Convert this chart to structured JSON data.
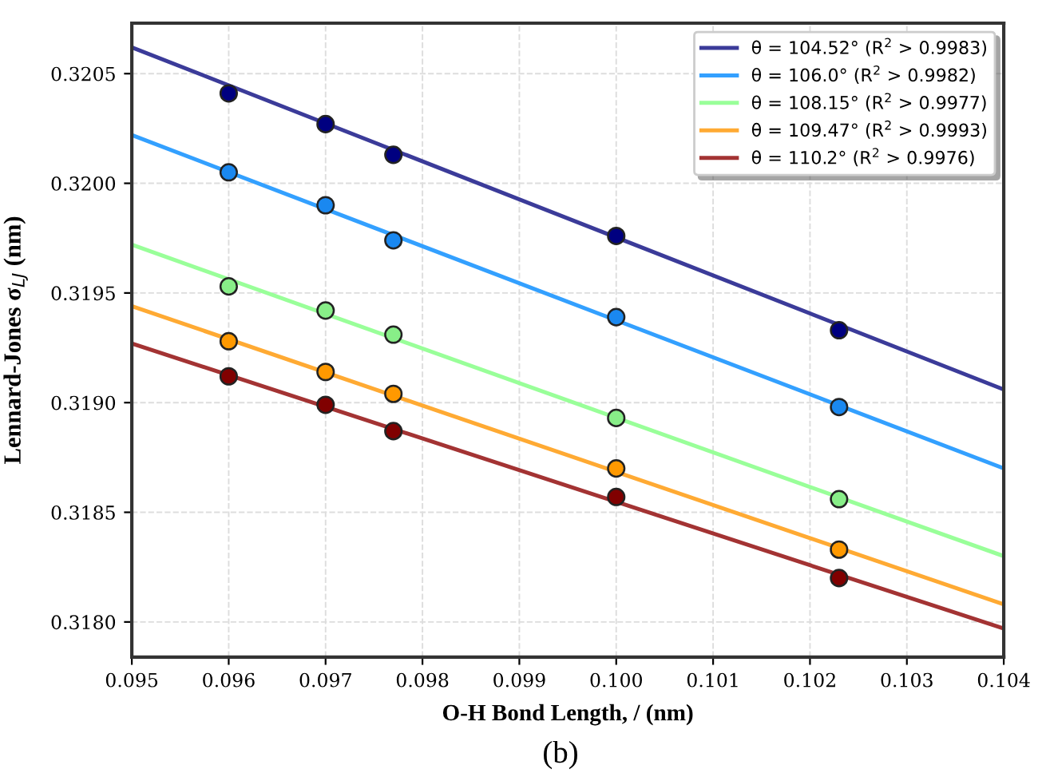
{
  "chart_data": {
    "type": "scatter",
    "xlabel": "O-H Bond Length, / (nm)",
    "ylabel": "Lennard-Jones σ$_{LJ}$ (nm)",
    "xlim": [
      0.095,
      0.104
    ],
    "xticks": [
      {
        "value": 0.095,
        "label": "0.095"
      },
      {
        "value": 0.096,
        "label": "0.096"
      },
      {
        "value": 0.097,
        "label": "0.097"
      },
      {
        "value": 0.098,
        "label": "0.098"
      },
      {
        "value": 0.099,
        "label": "0.099"
      },
      {
        "value": 0.1,
        "label": "0.100"
      },
      {
        "value": 0.101,
        "label": "0.101"
      },
      {
        "value": 0.102,
        "label": "0.102"
      },
      {
        "value": 0.103,
        "label": "0.103"
      },
      {
        "value": 0.104,
        "label": "0.104"
      }
    ],
    "ylim": [
      0.31784,
      0.32073
    ],
    "yticks": [
      {
        "value": 0.318,
        "label": "0.3180"
      },
      {
        "value": 0.3185,
        "label": "0.3185"
      },
      {
        "value": 0.319,
        "label": "0.3190"
      },
      {
        "value": 0.3195,
        "label": "0.3195"
      },
      {
        "value": 0.32,
        "label": "0.3200"
      },
      {
        "value": 0.3205,
        "label": "0.3205"
      }
    ],
    "grid": true,
    "legend": "top right",
    "annotations": [
      "(b)"
    ],
    "series": [
      {
        "type": "line",
        "name": "θ = 104.52° (R$^{2}$ > 0.9983)",
        "color": "#3b3b99",
        "x": [
          0.095,
          0.104
        ],
        "values": [
          0.32062,
          0.31906
        ],
        "marker": "none"
      },
      {
        "type": "line",
        "name": "θ = 106.0° (R$^{2}$ > 0.9982)",
        "color": "#33a0ff",
        "x": [
          0.095,
          0.104
        ],
        "values": [
          0.32022,
          0.3187
        ],
        "marker": "none"
      },
      {
        "type": "line",
        "name": "θ = 108.15° (R$^{2}$ > 0.9977)",
        "color": "#99ff99",
        "x": [
          0.095,
          0.104
        ],
        "values": [
          0.31972,
          0.3183
        ],
        "marker": "none"
      },
      {
        "type": "line",
        "name": "θ = 109.47° (R$^{2}$ > 0.9993)",
        "color": "#ffaa33",
        "x": [
          0.095,
          0.104
        ],
        "values": [
          0.31944,
          0.31808
        ],
        "marker": "none"
      },
      {
        "type": "line",
        "name": "θ = 110.2° (R$^{2}$ > 0.9976)",
        "color": "#a33333",
        "x": [
          0.095,
          0.104
        ],
        "values": [
          0.31927,
          0.31797
        ],
        "marker": "none"
      },
      {
        "color": "#000080",
        "x": [
          0.096,
          0.097,
          0.0977,
          0.1,
          0.1023
        ],
        "values": [
          0.32041,
          0.32027,
          0.32013,
          0.31976,
          0.31933
        ],
        "marker": "circle"
      },
      {
        "color": "#1a88f0",
        "x": [
          0.096,
          0.097,
          0.0977,
          0.1,
          0.1023
        ],
        "values": [
          0.32005,
          0.3199,
          0.31974,
          0.31939,
          0.31898
        ],
        "marker": "circle"
      },
      {
        "color": "#88ee88",
        "x": [
          0.096,
          0.097,
          0.0977,
          0.1,
          0.1023
        ],
        "values": [
          0.31953,
          0.31942,
          0.31931,
          0.31893,
          0.31856
        ],
        "marker": "circle"
      },
      {
        "color": "#ff9900",
        "x": [
          0.096,
          0.097,
          0.0977,
          0.1,
          0.1023
        ],
        "values": [
          0.31928,
          0.31914,
          0.31904,
          0.3187,
          0.31833
        ],
        "marker": "circle"
      },
      {
        "color": "#800000",
        "x": [
          0.096,
          0.097,
          0.0977,
          0.1,
          0.1023
        ],
        "values": [
          0.31912,
          0.31899,
          0.31887,
          0.31857,
          0.3182
        ],
        "marker": "circle"
      }
    ]
  }
}
